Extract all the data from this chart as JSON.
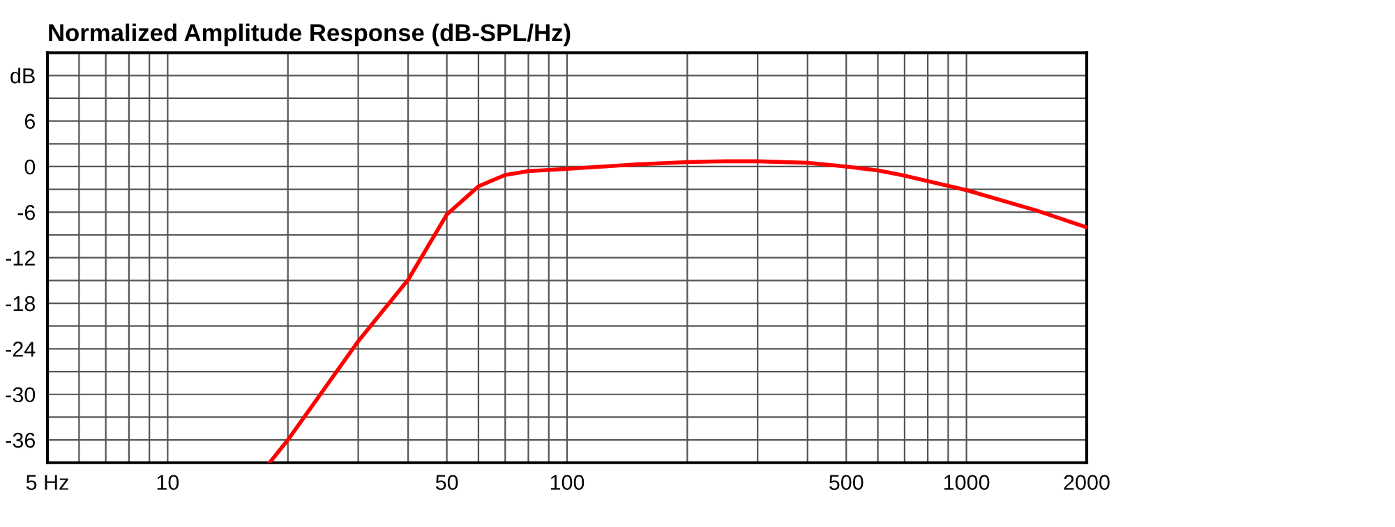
{
  "chart_data": {
    "type": "line",
    "title": "Normalized Amplitude Response (dB-SPL/Hz)",
    "x": [
      18,
      20,
      30,
      40,
      50,
      60,
      70,
      80,
      100,
      150,
      200,
      250,
      300,
      400,
      500,
      600,
      700,
      1000,
      1500,
      2000
    ],
    "series": [
      {
        "color": "#ff0000",
        "values": [
          -39,
          -36,
          -23,
          -14.9,
          -6.3,
          -2.6,
          -1.1,
          -0.6,
          -0.3,
          0.3,
          0.6,
          0.7,
          0.7,
          0.5,
          0,
          -0.5,
          -1.2,
          -3.1,
          -5.8,
          -8
        ]
      }
    ],
    "log": "x",
    "xlim": [
      5,
      2000
    ],
    "ylim": [
      -39,
      15
    ],
    "xticks": [
      {
        "value": 5,
        "label": "5 Hz"
      },
      {
        "value": 6,
        "label": null
      },
      {
        "value": 7,
        "label": null
      },
      {
        "value": 8,
        "label": null
      },
      {
        "value": 9,
        "label": null
      },
      10,
      {
        "value": 20,
        "label": null
      },
      {
        "value": 30,
        "label": null
      },
      {
        "value": 40,
        "label": null
      },
      50,
      {
        "value": 60,
        "label": null
      },
      {
        "value": 70,
        "label": null
      },
      {
        "value": 80,
        "label": null
      },
      {
        "value": 90,
        "label": null
      },
      100,
      {
        "value": 200,
        "label": null
      },
      {
        "value": 300,
        "label": null
      },
      {
        "value": 400,
        "label": null
      },
      500,
      {
        "value": 600,
        "label": null
      },
      {
        "value": 700,
        "label": null
      },
      {
        "value": 800,
        "label": null
      },
      {
        "value": 900,
        "label": null
      },
      1000,
      2000
    ],
    "yticks": [
      {
        "value": 12,
        "label": "dB"
      },
      {
        "value": 9,
        "label": null
      },
      6,
      {
        "value": 3,
        "label": null
      },
      0,
      {
        "value": -3,
        "label": null
      },
      -6,
      {
        "value": -9,
        "label": null
      },
      -12,
      {
        "value": -15,
        "label": null
      },
      -18,
      {
        "value": -21,
        "label": null
      },
      -24,
      {
        "value": -27,
        "label": null
      },
      -30,
      {
        "value": -33,
        "label": null
      },
      -36
    ],
    "grid": true,
    "marker": "none",
    "line_style": "solid"
  }
}
